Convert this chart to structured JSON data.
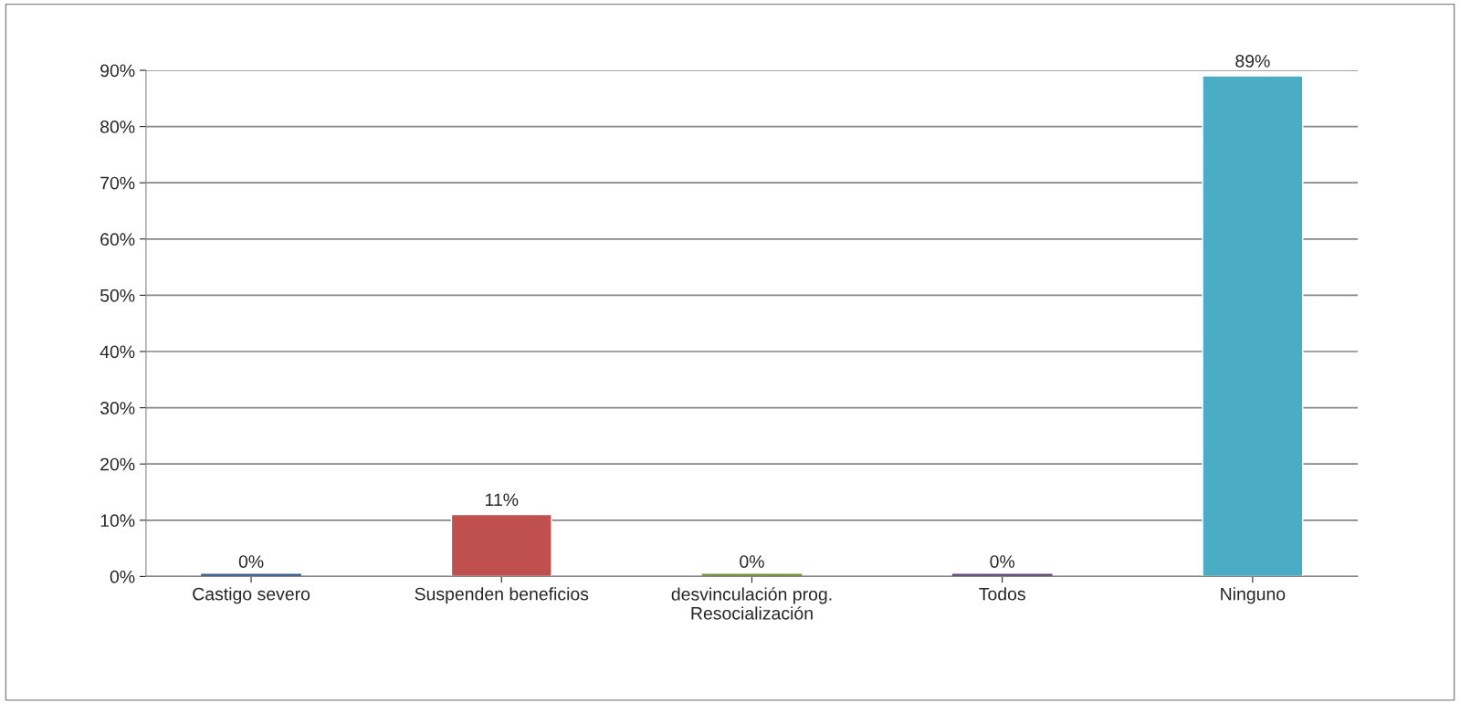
{
  "chart_data": {
    "type": "bar",
    "categories": [
      "Castigo severo",
      "Suspenden beneficios",
      "desvinculación prog.\nResocialización",
      "Todos",
      "Ninguno"
    ],
    "values": [
      0,
      11,
      0,
      0,
      89
    ],
    "colors": [
      "#3a5f8f",
      "#c0504d",
      "#77933c",
      "#604a7b",
      "#4bacc6"
    ],
    "value_labels": [
      "0%",
      "11%",
      "0%",
      "0%",
      "89%"
    ],
    "ylim": [
      0,
      90
    ],
    "yticks": [
      {
        "value": 0,
        "label": "0%"
      },
      {
        "value": 10,
        "label": "10%"
      },
      {
        "value": 20,
        "label": "20%"
      },
      {
        "value": 30,
        "label": "30%"
      },
      {
        "value": 40,
        "label": "40%"
      },
      {
        "value": 50,
        "label": "50%"
      },
      {
        "value": 60,
        "label": "60%"
      },
      {
        "value": 70,
        "label": "70%"
      },
      {
        "value": 80,
        "label": "80%"
      },
      {
        "value": 90,
        "label": "90%"
      }
    ],
    "grid": "y"
  }
}
